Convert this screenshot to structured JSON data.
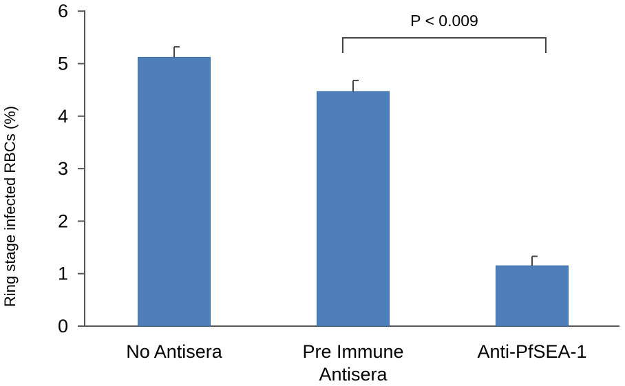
{
  "chart_data": {
    "type": "bar",
    "categories": [
      [
        "No Antisera"
      ],
      [
        "Pre Immune",
        "Antisera"
      ],
      [
        "Anti-PfSEA-1"
      ]
    ],
    "values": [
      5.12,
      4.47,
      1.15
    ],
    "errors": [
      0.2,
      0.21,
      0.18
    ],
    "title": "",
    "xlabel": "",
    "ylabel": "Ring stage infected RBCs (%)",
    "ylim": [
      0,
      6
    ],
    "yticks": [
      0,
      1,
      2,
      3,
      4,
      5,
      6
    ],
    "grid": false,
    "bar_color": "#4f7fba",
    "annotation": {
      "text": "P < 0.009",
      "from_category": 1,
      "to_category": 2
    }
  }
}
